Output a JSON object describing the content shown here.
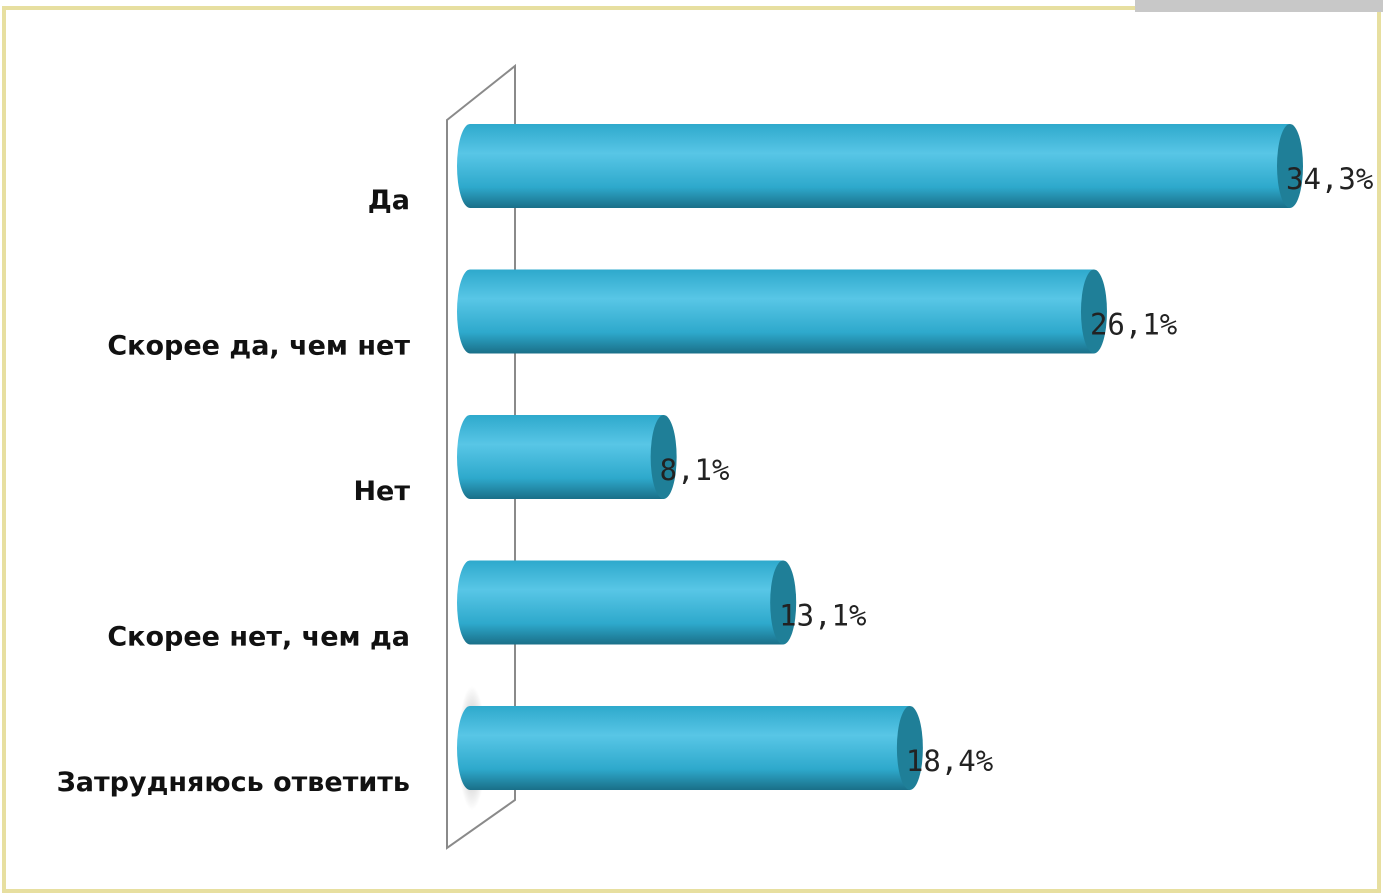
{
  "chart_data": {
    "type": "bar",
    "orientation": "horizontal",
    "style": "3d-cylinder",
    "title": "",
    "xlabel": "",
    "ylabel": "",
    "categories": [
      "Да",
      "Скорее да, чем нет",
      "Нет",
      "Скорее нет, чем да",
      "Затрудняюсь ответить"
    ],
    "values": [
      34.3,
      26.1,
      8.1,
      13.1,
      18.4
    ],
    "value_labels": [
      "34,3%",
      "26,1%",
      "8,1%",
      "13,1%",
      "18,4%"
    ],
    "xlim": [
      0,
      34.3
    ],
    "grid": false,
    "legend": "none",
    "colors": {
      "bar_light": "#58c6e6",
      "bar_mid": "#2ea9cc",
      "bar_dark": "#1a6f88",
      "bar_cap": "#1f7f98",
      "frame_border": "#e7dfa0",
      "wall_stroke": "#8a8a8a"
    }
  }
}
